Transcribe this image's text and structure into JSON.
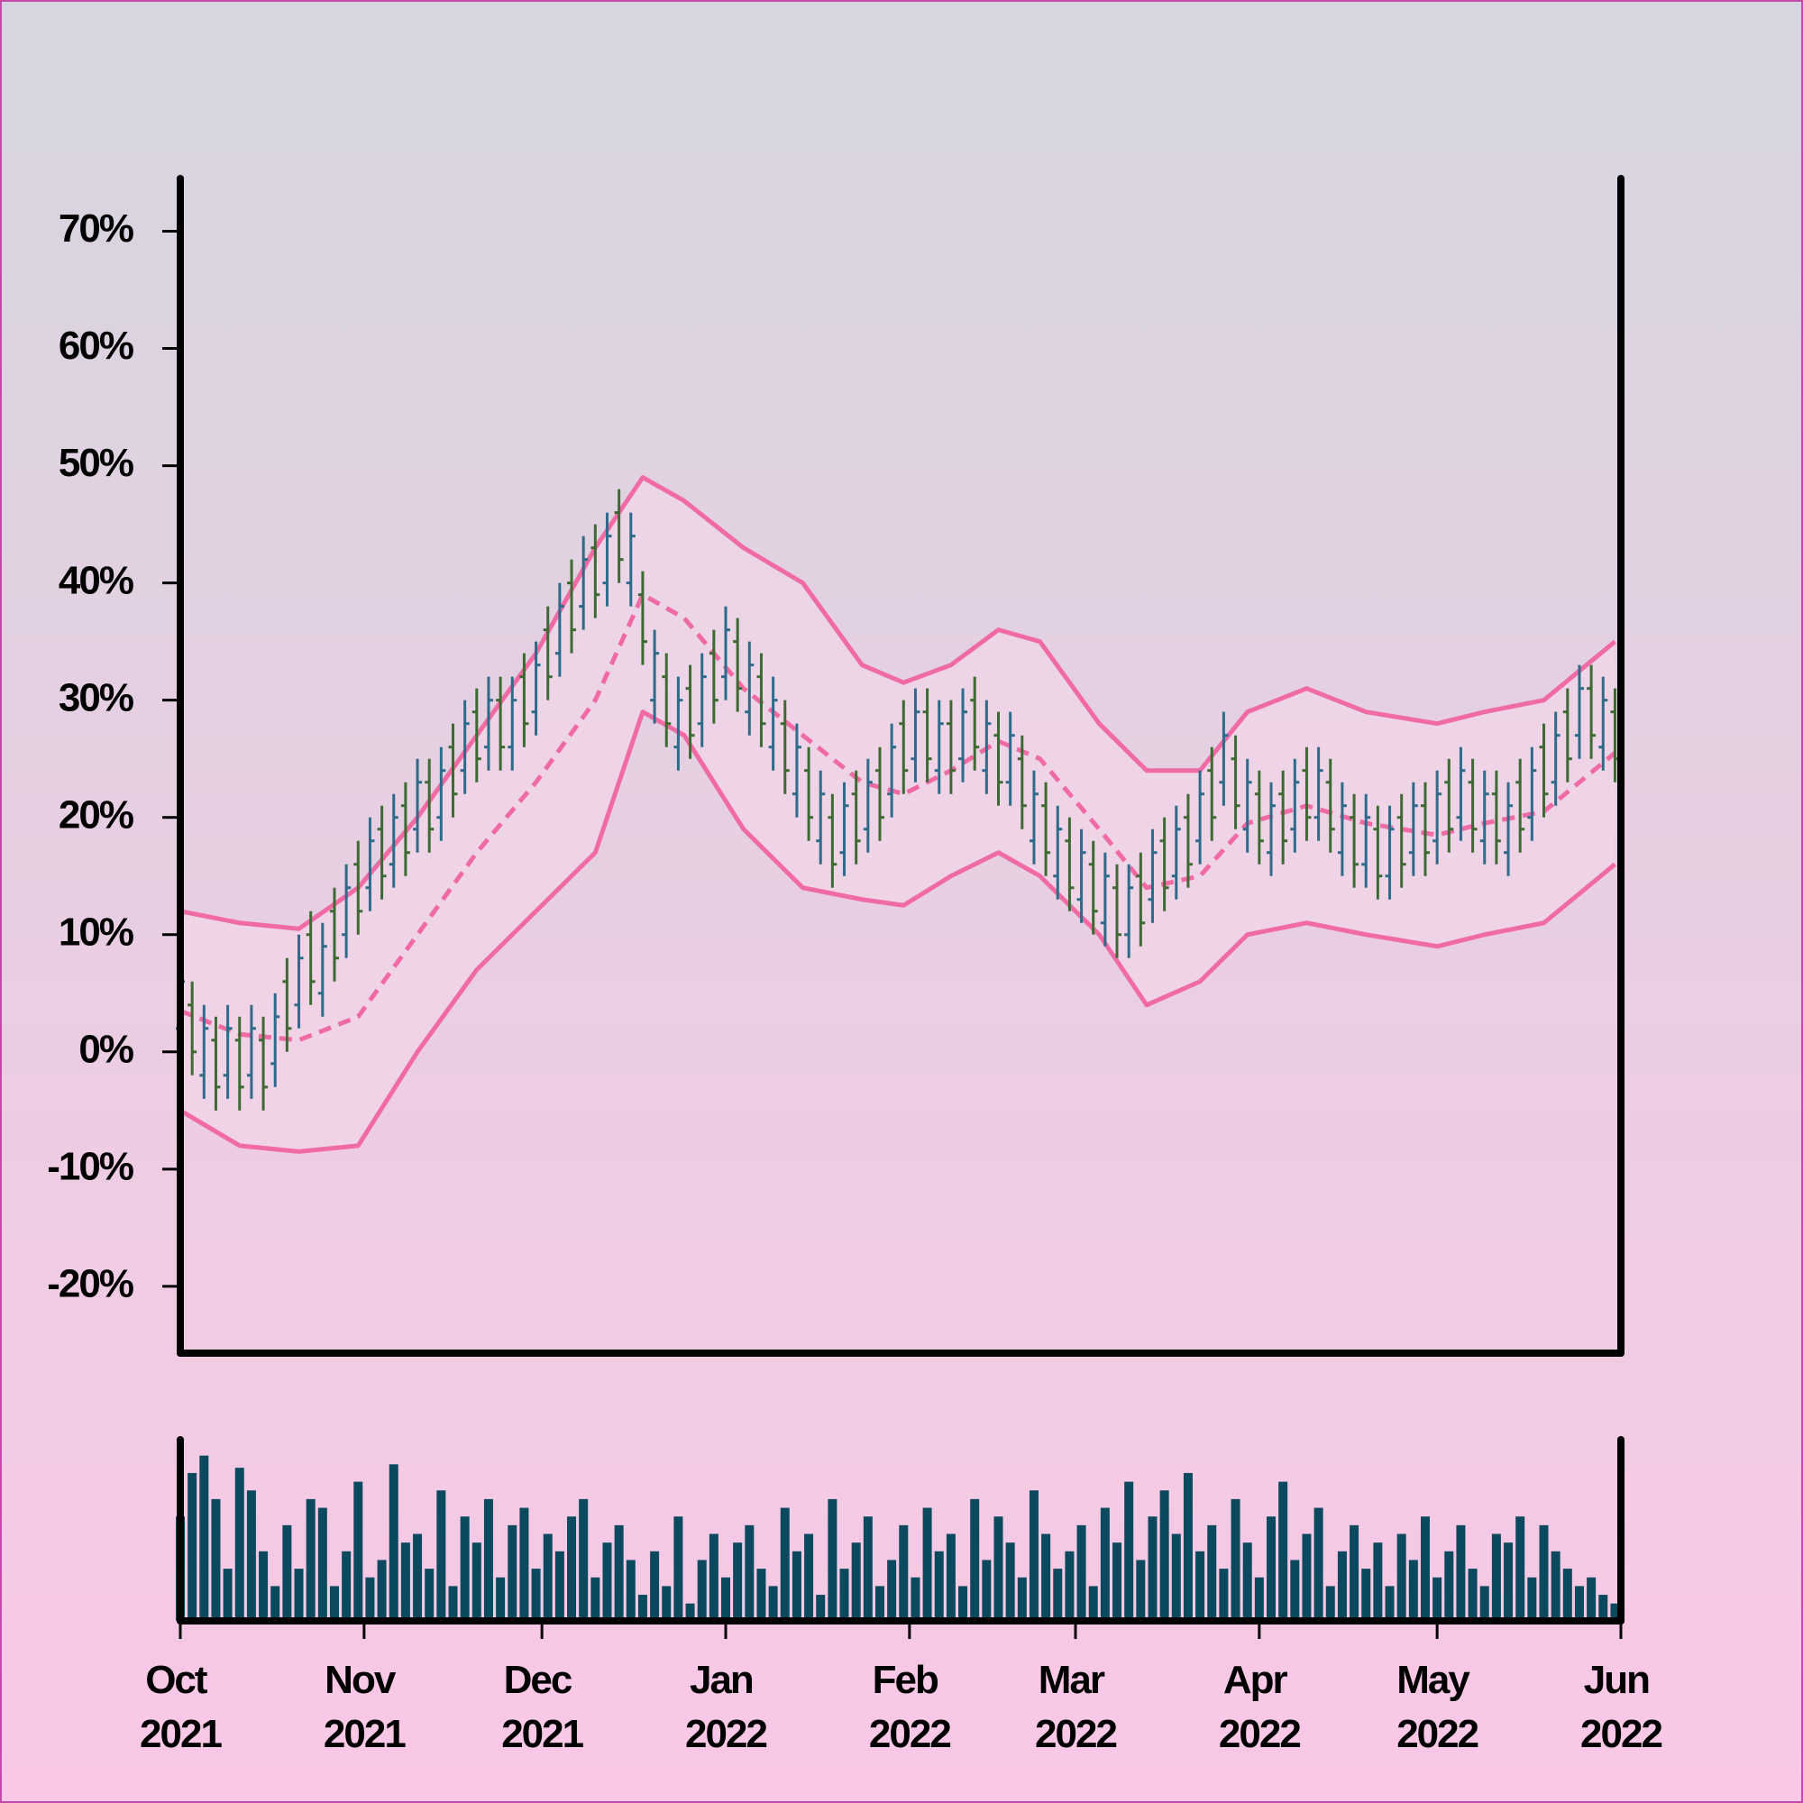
{
  "chart_data": {
    "type": "ohlc",
    "x": [
      0,
      2,
      4,
      6,
      8,
      10,
      12,
      14,
      16,
      18,
      20,
      22,
      24,
      26,
      28,
      30,
      32,
      34,
      36,
      38,
      40,
      42,
      44,
      46,
      48,
      50,
      52,
      54,
      56,
      58,
      60,
      62,
      64,
      66,
      68,
      70,
      72,
      74,
      76,
      78,
      80,
      82,
      84,
      86,
      88,
      90,
      92,
      94,
      96,
      98,
      100,
      102,
      104,
      106,
      108,
      110,
      112,
      114,
      116,
      118,
      120,
      122,
      124,
      126,
      128,
      130,
      132,
      134,
      136,
      138,
      140,
      142,
      144,
      146,
      148,
      150,
      152,
      154,
      156,
      158,
      160,
      162,
      164,
      166,
      168,
      170,
      172,
      174,
      176,
      178,
      180,
      182,
      184,
      186,
      188,
      190,
      192,
      194,
      196,
      198,
      200,
      202,
      204,
      206,
      208,
      210,
      212,
      214,
      216,
      218,
      220,
      222,
      224,
      226,
      228,
      230,
      232,
      234,
      236,
      238,
      240,
      242
    ],
    "open": [
      2,
      4,
      -2,
      1,
      -2,
      1,
      -2,
      1,
      -1,
      6,
      4,
      10,
      5,
      12,
      10,
      16,
      14,
      19,
      16,
      21,
      19,
      23,
      20,
      26,
      24,
      29,
      26,
      30,
      26,
      32,
      29,
      36,
      34,
      40,
      38,
      43,
      40,
      46,
      40,
      39,
      30,
      32,
      26,
      31,
      28,
      34,
      32,
      35,
      29,
      32,
      26,
      28,
      22,
      24,
      18,
      20,
      17,
      22,
      19,
      24,
      22,
      28,
      25,
      29,
      24,
      28,
      25,
      30,
      24,
      27,
      23,
      25,
      18,
      21,
      15,
      18,
      13,
      16,
      11,
      14,
      10,
      15,
      13,
      18,
      15,
      20,
      18,
      24,
      23,
      25,
      19,
      22,
      17,
      22,
      19,
      24,
      20,
      23,
      17,
      20,
      16,
      19,
      15,
      20,
      17,
      21,
      18,
      23,
      20,
      23,
      18,
      22,
      17,
      23,
      20,
      26,
      23,
      29,
      27,
      31,
      26,
      29
    ],
    "high": [
      8,
      6,
      4,
      3,
      4,
      3,
      4,
      3,
      5,
      8,
      10,
      12,
      11,
      14,
      16,
      18,
      20,
      21,
      22,
      23,
      25,
      25,
      26,
      28,
      30,
      31,
      32,
      32,
      32,
      34,
      35,
      38,
      40,
      42,
      44,
      45,
      46,
      48,
      46,
      41,
      36,
      34,
      32,
      33,
      34,
      36,
      38,
      37,
      35,
      34,
      32,
      30,
      28,
      26,
      24,
      22,
      23,
      24,
      25,
      26,
      28,
      30,
      31,
      31,
      30,
      30,
      31,
      32,
      30,
      29,
      29,
      27,
      24,
      23,
      21,
      20,
      19,
      18,
      17,
      16,
      16,
      17,
      19,
      20,
      21,
      22,
      24,
      26,
      29,
      27,
      25,
      24,
      23,
      24,
      25,
      26,
      26,
      25,
      23,
      22,
      22,
      21,
      21,
      22,
      23,
      23,
      24,
      25,
      26,
      25,
      24,
      24,
      23,
      25,
      26,
      28,
      29,
      31,
      33,
      33,
      32,
      31
    ],
    "low": [
      0,
      -2,
      -4,
      -5,
      -4,
      -5,
      -4,
      -5,
      -3,
      0,
      2,
      4,
      3,
      6,
      8,
      10,
      12,
      13,
      14,
      15,
      17,
      17,
      18,
      20,
      22,
      23,
      24,
      24,
      24,
      26,
      27,
      30,
      32,
      34,
      36,
      37,
      38,
      40,
      38,
      33,
      28,
      26,
      24,
      25,
      26,
      28,
      30,
      29,
      27,
      26,
      24,
      22,
      20,
      18,
      16,
      14,
      15,
      16,
      17,
      18,
      20,
      22,
      23,
      23,
      22,
      22,
      23,
      24,
      22,
      21,
      21,
      19,
      16,
      15,
      13,
      12,
      11,
      10,
      9,
      8,
      8,
      9,
      11,
      12,
      13,
      14,
      16,
      18,
      21,
      19,
      17,
      16,
      15,
      16,
      17,
      18,
      18,
      17,
      15,
      14,
      14,
      13,
      13,
      14,
      15,
      15,
      16,
      17,
      18,
      17,
      16,
      16,
      15,
      17,
      18,
      20,
      21,
      23,
      25,
      25,
      24,
      23
    ],
    "close": [
      6,
      0,
      2,
      -3,
      2,
      -3,
      2,
      -3,
      3,
      2,
      8,
      6,
      9,
      8,
      14,
      12,
      18,
      15,
      20,
      17,
      23,
      19,
      24,
      22,
      28,
      25,
      30,
      26,
      30,
      28,
      33,
      32,
      38,
      36,
      42,
      39,
      44,
      42,
      44,
      35,
      34,
      28,
      30,
      27,
      32,
      30,
      36,
      31,
      33,
      28,
      30,
      24,
      26,
      20,
      22,
      16,
      21,
      18,
      23,
      20,
      26,
      24,
      29,
      25,
      28,
      24,
      29,
      26,
      28,
      23,
      27,
      21,
      22,
      17,
      19,
      14,
      17,
      12,
      15,
      10,
      14,
      11,
      17,
      14,
      19,
      16,
      22,
      20,
      27,
      21,
      23,
      18,
      21,
      18,
      23,
      20,
      24,
      19,
      21,
      16,
      20,
      15,
      19,
      16,
      21,
      17,
      22,
      19,
      24,
      19,
      22,
      18,
      21,
      19,
      24,
      22,
      27,
      25,
      31,
      27,
      30,
      25
    ],
    "up_color": "#2e6a8a",
    "down_color": "#3d6a33",
    "xlim": [
      0,
      243
    ],
    "xticks": [
      {
        "value": 0,
        "label": "Oct 2021"
      },
      {
        "value": 31,
        "label": "Nov 2021"
      },
      {
        "value": 61,
        "label": "Dec 2021"
      },
      {
        "value": 92,
        "label": "Jan 2022"
      },
      {
        "value": 123,
        "label": "Feb 2022"
      },
      {
        "value": 151,
        "label": "Mar 2022"
      },
      {
        "value": 182,
        "label": "Apr 2022"
      },
      {
        "value": 212,
        "label": "May 2022"
      },
      {
        "value": 243,
        "label": "Jun 2022"
      }
    ],
    "ylim": [
      -25.7,
      74.5
    ],
    "yticks": [
      {
        "value": -20,
        "label": "-20%"
      },
      {
        "value": -10,
        "label": "-10%"
      },
      {
        "value": 0,
        "label": "0%"
      },
      {
        "value": 10,
        "label": "10%"
      },
      {
        "value": 20,
        "label": "20%"
      },
      {
        "value": 30,
        "label": "30%"
      },
      {
        "value": 40,
        "label": "40%"
      },
      {
        "value": 50,
        "label": "50%"
      },
      {
        "value": 60,
        "label": "60%"
      },
      {
        "value": 70,
        "label": "70%"
      }
    ],
    "bands": {
      "x": [
        0,
        10,
        20,
        30,
        40,
        50,
        60,
        70,
        78,
        85,
        95,
        105,
        115,
        122,
        130,
        138,
        145,
        155,
        163,
        172,
        180,
        190,
        200,
        212,
        220,
        230,
        242
      ],
      "upper": [
        12,
        11,
        10.5,
        14,
        20,
        27,
        34,
        43,
        49,
        47,
        43,
        40,
        33,
        31.5,
        33,
        36,
        35,
        28,
        24,
        24,
        29,
        31,
        29,
        28,
        29,
        30,
        35
      ],
      "middle": [
        3.5,
        1.5,
        1,
        3,
        10,
        17,
        23,
        30,
        39,
        37,
        31,
        27,
        23,
        22,
        24,
        26.5,
        25,
        19,
        14,
        15,
        19.5,
        21,
        19.5,
        18.5,
        19.5,
        20.5,
        25.5
      ],
      "lower": [
        -5,
        -8,
        -8.5,
        -8,
        0,
        7,
        12,
        17,
        29,
        27,
        19,
        14,
        13,
        12.5,
        15,
        17,
        15,
        10,
        4,
        6,
        10,
        11,
        10,
        9,
        10,
        11,
        16
      ],
      "color": "#f06aa5",
      "fill": "#f3d7ea"
    },
    "volume": {
      "values": [
        60,
        85,
        95,
        70,
        30,
        88,
        75,
        40,
        20,
        55,
        30,
        70,
        65,
        20,
        40,
        80,
        25,
        35,
        90,
        45,
        50,
        30,
        75,
        20,
        60,
        45,
        70,
        25,
        55,
        65,
        30,
        50,
        40,
        60,
        70,
        25,
        45,
        55,
        35,
        15,
        40,
        20,
        60,
        10,
        35,
        50,
        25,
        45,
        55,
        30,
        20,
        65,
        40,
        50,
        15,
        70,
        30,
        45,
        60,
        20,
        35,
        55,
        25,
        65,
        40,
        50,
        20,
        70,
        35,
        60,
        45,
        25,
        75,
        50,
        30,
        40,
        55,
        20,
        65,
        45,
        80,
        35,
        60,
        75,
        50,
        85,
        40,
        55,
        30,
        70,
        45,
        25,
        60,
        80,
        35,
        50,
        65,
        20,
        40,
        55,
        30,
        45,
        20,
        50,
        35,
        60,
        25,
        40,
        55,
        30,
        20,
        50,
        45,
        60,
        25,
        55,
        40,
        30,
        20,
        25,
        15,
        10
      ],
      "ylim": [
        0,
        100
      ],
      "color": "#0b4a5e"
    }
  }
}
